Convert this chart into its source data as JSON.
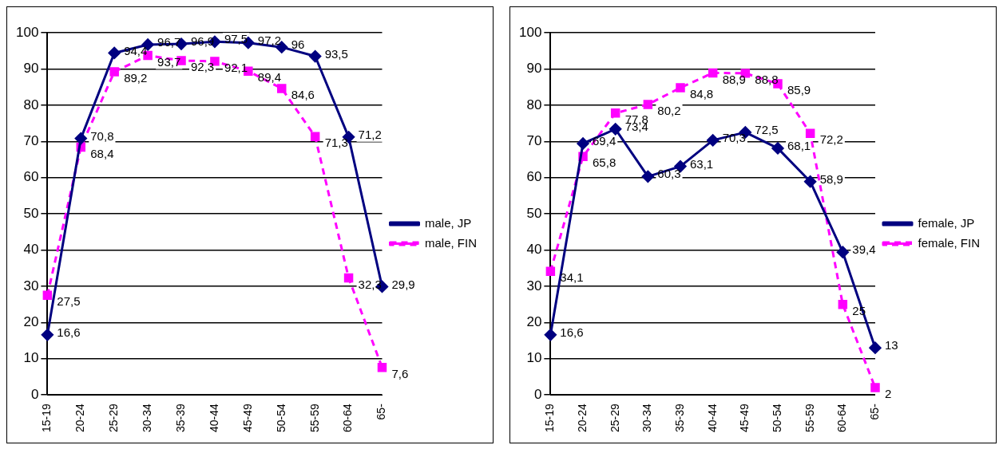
{
  "chart_data": [
    {
      "type": "line",
      "categories": [
        "15-19",
        "20-24",
        "25-29",
        "30-34",
        "35-39",
        "40-44",
        "45-49",
        "50-54",
        "55-59",
        "60-64",
        "65-"
      ],
      "ylim": [
        0,
        100
      ],
      "yticks": [
        0,
        10,
        20,
        30,
        40,
        50,
        60,
        70,
        80,
        90,
        100
      ],
      "grid": "y",
      "legend": "right",
      "series": [
        {
          "name": "male, JP",
          "color": "#000080",
          "marker": "diamond",
          "line_style": "solid",
          "values": [
            16.6,
            70.8,
            94.4,
            96.7,
            96.9,
            97.5,
            97.2,
            96,
            93.5,
            71.2,
            29.9
          ],
          "value_labels": [
            "16,6",
            "70,8",
            "94,4",
            "96,7",
            "96,9",
            "97,5",
            "97,2",
            "96",
            "93,5",
            "71,2",
            "29,9"
          ]
        },
        {
          "name": "male, FIN",
          "color": "#ff00ff",
          "marker": "square",
          "line_style": "dashed",
          "values": [
            27.5,
            68.4,
            89.2,
            93.7,
            92.3,
            92.1,
            89.4,
            84.6,
            71.3,
            32.3,
            7.6
          ],
          "value_labels": [
            "27,5",
            "68,4",
            "89,2",
            "93,7",
            "92,3",
            "92,1",
            "89,4",
            "84,6",
            "71,3",
            "32,3",
            "7,6"
          ]
        }
      ]
    },
    {
      "type": "line",
      "categories": [
        "15-19",
        "20-24",
        "25-29",
        "30-34",
        "35-39",
        "40-44",
        "45-49",
        "50-54",
        "55-59",
        "60-64",
        "65-"
      ],
      "ylim": [
        0,
        100
      ],
      "yticks": [
        0,
        10,
        20,
        30,
        40,
        50,
        60,
        70,
        80,
        90,
        100
      ],
      "grid": "y",
      "legend": "right",
      "series": [
        {
          "name": "female, JP",
          "color": "#000080",
          "marker": "diamond",
          "line_style": "solid",
          "values": [
            16.6,
            69.4,
            73.4,
            60.3,
            63.1,
            70.3,
            72.5,
            68.1,
            58.9,
            39.4,
            13
          ],
          "value_labels": [
            "16,6",
            "69,4",
            "73,4",
            "60,3",
            "63,1",
            "70,3",
            "72,5",
            "68,1",
            "58,9",
            "39,4",
            "13"
          ]
        },
        {
          "name": "female, FIN",
          "color": "#ff00ff",
          "marker": "square",
          "line_style": "dashed",
          "values": [
            34.1,
            65.8,
            77.8,
            80.2,
            84.8,
            88.9,
            88.8,
            85.9,
            72.2,
            25,
            2
          ],
          "value_labels": [
            "34,1",
            "65,8",
            "77,8",
            "80,2",
            "84,8",
            "88,9",
            "88,8",
            "85,9",
            "72,2",
            "25",
            "2"
          ]
        }
      ]
    }
  ]
}
